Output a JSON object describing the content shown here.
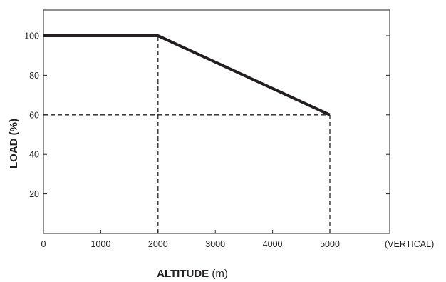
{
  "chart_data": {
    "type": "line",
    "title": "",
    "xlabel": "ALTITUDE",
    "xlabel_unit": "(m)",
    "ylabel": "LOAD (%)",
    "x_note": "(VERTICAL)",
    "xlim": [
      0,
      6000
    ],
    "ylim": [
      0,
      115
    ],
    "xticks": [
      0,
      1000,
      2000,
      3000,
      4000,
      5000
    ],
    "yticks": [
      20,
      40,
      60,
      80,
      100
    ],
    "grid": false,
    "series": [
      {
        "x": [
          0,
          2000,
          5000
        ],
        "y": [
          100,
          100,
          60
        ]
      }
    ],
    "reference_lines": [
      {
        "x": [
          2000,
          2000
        ],
        "y": [
          0,
          100
        ]
      },
      {
        "x": [
          5000,
          5000
        ],
        "y": [
          0,
          60
        ]
      },
      {
        "x": [
          0,
          5000
        ],
        "y": [
          60,
          60
        ]
      }
    ],
    "colors": {
      "line": "#231f20",
      "axis": "#231f20"
    }
  }
}
